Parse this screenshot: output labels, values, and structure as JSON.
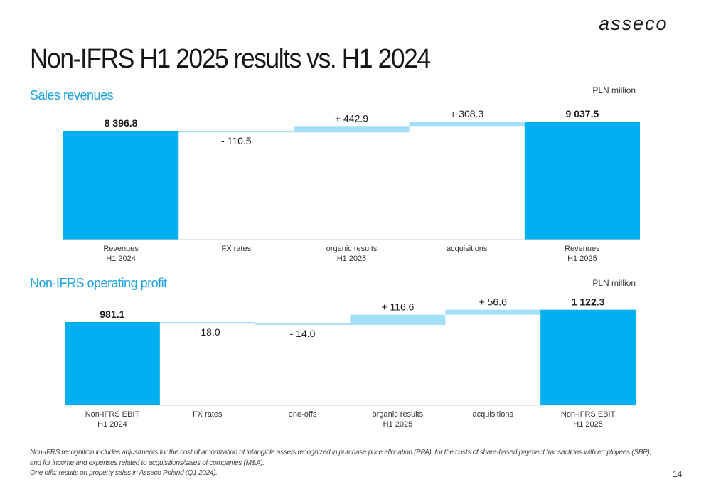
{
  "brand": {
    "logo_text": "asseco"
  },
  "title": "Non-IFRS H1 2025 results vs. H1 2024",
  "colors": {
    "total": "#00b0f0",
    "delta": "#a3dff7",
    "connector": "#d0d0d0",
    "heading": "#1aa3e0"
  },
  "chart_data": [
    {
      "type": "waterfall",
      "title": "Sales revenues",
      "unit": "PLN million",
      "categories": [
        "Revenues\nH1 2024",
        "FX rates",
        "organic results\nH1 2025",
        "acquisitions",
        "Revenues\nH1 2025"
      ],
      "kinds": [
        "total",
        "delta",
        "delta",
        "delta",
        "total"
      ],
      "values": [
        8396.8,
        -110.5,
        442.9,
        308.3,
        9037.5
      ],
      "labels": [
        "8 396.8",
        "- 110.5",
        "+ 442.9",
        "+ 308.3",
        "9 037.5"
      ]
    },
    {
      "type": "waterfall",
      "title": "Non-IFRS operating profit",
      "unit": "PLN million",
      "categories": [
        "Non-IFRS EBIT\nH1 2024",
        "FX rates",
        "one-offs",
        "organic results\nH1 2025",
        "acquisitions",
        "Non-IFRS EBIT\nH1 2025"
      ],
      "kinds": [
        "total",
        "delta",
        "delta",
        "delta",
        "delta",
        "total"
      ],
      "values": [
        981.1,
        -18.0,
        -14.0,
        116.6,
        56.6,
        1122.3
      ],
      "labels": [
        "981.1",
        "- 18.0",
        "- 14.0",
        "+ 116.6",
        "+ 56.6",
        "1 122.3"
      ]
    }
  ],
  "footnote": [
    "Non-IFRS recognition includes adjustments for the cost of amortization of intangible assets recognized in purchase price allocation (PPA), for the costs of share-based payment transactions with employees (SBP),",
    "and for income and expenses related to acquisitions/sales of companies (M&A).",
    "One offs: results on property sales in Asseco Poland (Q1 2024)."
  ],
  "page_number": "14"
}
